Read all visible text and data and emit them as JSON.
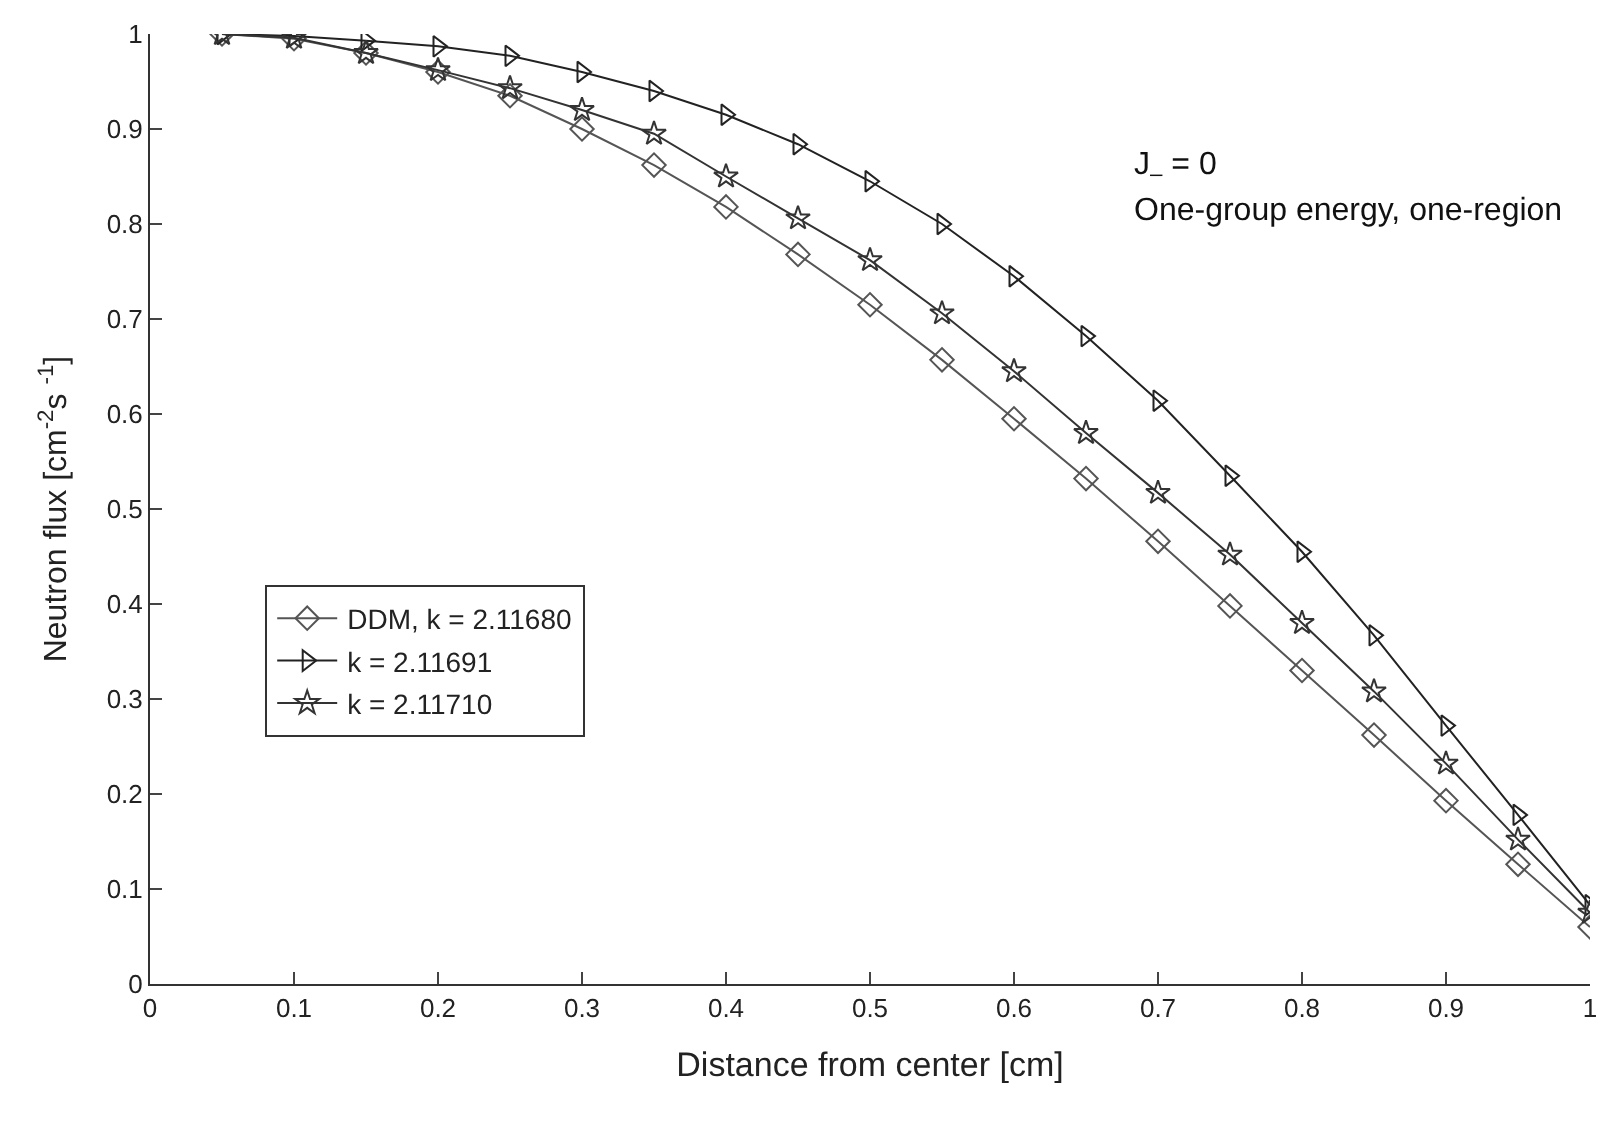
{
  "chart_data": {
    "type": "line",
    "xlabel": "Distance from center [cm]",
    "ylabel": "Neutron flux [cm$^{-2}$s $^{-1}$]",
    "x": [
      0.05,
      0.1,
      0.15,
      0.2,
      0.25,
      0.3,
      0.35,
      0.4,
      0.45,
      0.5,
      0.55,
      0.6,
      0.65,
      0.7,
      0.75,
      0.8,
      0.85,
      0.9,
      0.95,
      1.0
    ],
    "series": [
      {
        "name": "DDM, k = 2.11680",
        "color": "#555555",
        "marker": "diamond",
        "values": [
          1,
          0.995,
          0.98,
          0.96,
          0.935,
          0.9,
          0.862,
          0.818,
          0.768,
          0.715,
          0.657,
          0.595,
          0.532,
          0.466,
          0.398,
          0.33,
          0.262,
          0.193,
          0.126,
          0.06
        ]
      },
      {
        "name": "k = 2.11691",
        "color": "#222222",
        "marker": "triangle",
        "values": [
          1,
          0.998,
          0.993,
          0.987,
          0.977,
          0.96,
          0.94,
          0.915,
          0.884,
          0.845,
          0.8,
          0.745,
          0.682,
          0.614,
          0.535,
          0.455,
          0.367,
          0.272,
          0.178,
          0.083
        ]
      },
      {
        "name": "k = 2.11710",
        "color": "#333333",
        "marker": "star",
        "values": [
          1,
          0.996,
          0.98,
          0.962,
          0.943,
          0.92,
          0.895,
          0.85,
          0.806,
          0.762,
          0.706,
          0.645,
          0.58,
          0.517,
          0.452,
          0.38,
          0.308,
          0.232,
          0.152,
          0.075
        ]
      }
    ],
    "annotations": [
      "J$_{–}$ = 0",
      "One-group energy, one-region"
    ],
    "xlim": [
      0,
      1
    ],
    "xticks": [
      0,
      0.1,
      0.2,
      0.3,
      0.4,
      0.5,
      0.6,
      0.7,
      0.8,
      0.9,
      1
    ],
    "ylim": [
      0,
      1
    ],
    "yticks": [
      0,
      0.1,
      0.2,
      0.3,
      0.4,
      0.5,
      0.6,
      0.7,
      0.8,
      0.9,
      1
    ],
    "legend": "left",
    "line_style": "solid"
  }
}
